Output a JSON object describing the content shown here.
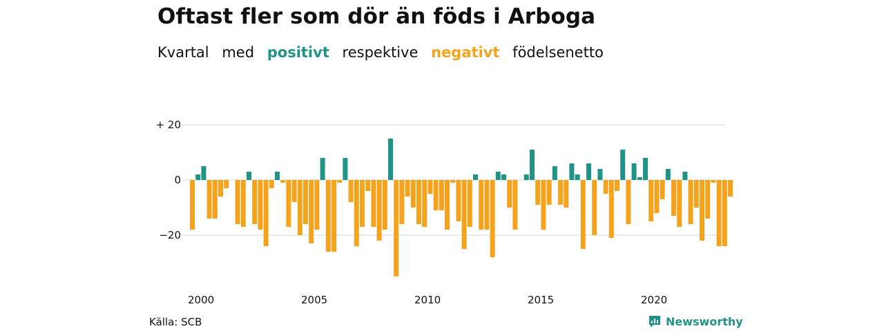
{
  "title": "Oftast fler som dör än föds i Arboga",
  "subtitle": {
    "part1": "Kvartal",
    "part2": "med",
    "positive_word": "positivt",
    "part3": "respektive",
    "negative_word": "negativt",
    "part4": "födelsenetto"
  },
  "source": "Källa: SCB",
  "brand": "Newsworthy",
  "colors": {
    "positive": "#1f9486",
    "negative": "#f5a31c",
    "grid": "#d9d9d9",
    "text": "#111111"
  },
  "chart_data": {
    "type": "bar",
    "x_ticks": [
      "2000",
      "2005",
      "2010",
      "2015",
      "2020"
    ],
    "y_ticks": [
      {
        "value": 20,
        "label": "+ 20"
      },
      {
        "value": 0,
        "label": "0"
      },
      {
        "value": -20,
        "label": "−20"
      }
    ],
    "ylim": [
      -36,
      20
    ],
    "start_year": 2000,
    "start_quarter": 1,
    "values": [
      -18,
      2,
      5,
      -14,
      -14,
      -6,
      -3,
      0,
      -16,
      -17,
      3,
      -16,
      -18,
      -24,
      -3,
      3,
      -1,
      -17,
      -8,
      -20,
      -16,
      -23,
      -18,
      8,
      -26,
      -26,
      -1,
      8,
      -8,
      -24,
      -17,
      -4,
      -17,
      -22,
      -18,
      15,
      -35,
      -16,
      -6,
      -10,
      -16,
      -17,
      -5,
      -11,
      -11,
      -18,
      -1,
      -15,
      -25,
      -17,
      2,
      -18,
      -18,
      -28,
      3,
      2,
      -10,
      -18,
      0,
      2,
      11,
      -9,
      -18,
      -9,
      5,
      -9,
      -10,
      6,
      2,
      -25,
      6,
      -20,
      4,
      -5,
      -21,
      -4,
      11,
      -16,
      6,
      1,
      8,
      -15,
      -12,
      -7,
      4,
      -13,
      -17,
      3,
      -16,
      -10,
      -22,
      -14,
      -1,
      -24,
      -24,
      -6
    ]
  }
}
